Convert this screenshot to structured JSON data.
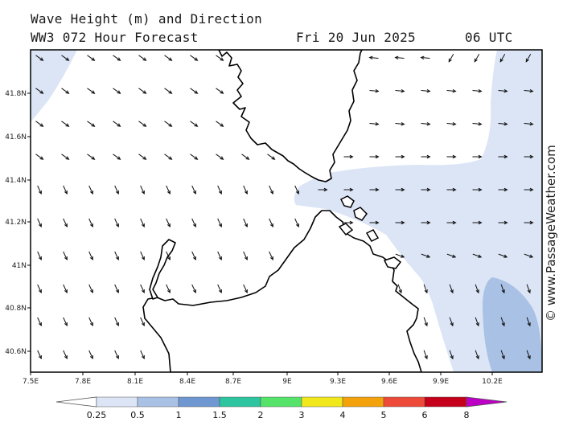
{
  "header": {
    "title_line1": "Wave Height (m) and Direction",
    "title_line2": "WW3 072 Hour Forecast",
    "date": "Fri 20 Jun 2025",
    "time": "06 UTC"
  },
  "credit": "© www.PassageWeather.com",
  "map": {
    "lon_labels": [
      "7.5E",
      "7.8E",
      "8.1E",
      "8.4E",
      "8.7E",
      "9E",
      "9.3E",
      "9.6E",
      "9.9E",
      "10.2E"
    ],
    "lat_labels": [
      "41.8N",
      "41.6N",
      "41.4N",
      "41.2N",
      "41N",
      "40.8N",
      "40.6N"
    ],
    "land_color": "#ffffff",
    "coast_color": "#000000"
  },
  "colorbar": {
    "labels": [
      "0.25",
      "0.5",
      "1",
      "1.5",
      "2",
      "3",
      "4",
      "5",
      "6",
      "8"
    ],
    "colors": [
      "#ffffff",
      "#dbe5f6",
      "#a9c1e4",
      "#6f97d1",
      "#2dc4a0",
      "#55e36a",
      "#f0e81a",
      "#f4a20c",
      "#ee4a3a",
      "#c4001a",
      "#bd00c5"
    ]
  },
  "wave_fields": {
    "light_color": "#dbe5f6",
    "medium_color": "#a9c1e4"
  }
}
